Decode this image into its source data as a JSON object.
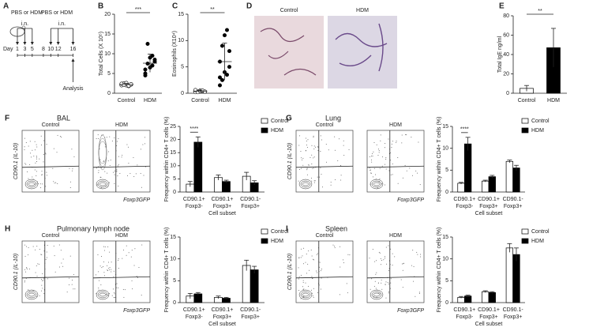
{
  "schedule": {
    "panel": "A",
    "treatments": [
      "PBS or HDM",
      "PBS or HDM"
    ],
    "routes": [
      "i.n.",
      "i.n."
    ],
    "day_label": "Day",
    "days": [
      1,
      3,
      5,
      8,
      10,
      12,
      16
    ],
    "end_label": "Analysis"
  },
  "micrographs": {
    "panel": "D",
    "labels": [
      "Control",
      "HDM"
    ]
  },
  "flow_panels": [
    {
      "plots": [
        "Control",
        "HDM"
      ],
      "y_label": "CD90.1 (IL-10)",
      "x_label": "Foxp3GFP"
    },
    {
      "plots": [
        "Control",
        "HDM"
      ],
      "y_label": "CD90.1 (IL-10)",
      "x_label": "Foxp3GFP"
    },
    {
      "plots": [
        "Control",
        "HDM"
      ],
      "y_label": "CD90.1 (IL-10)",
      "x_label": "Foxp3GFP"
    },
    {
      "plots": [
        "Control",
        "HDM"
      ],
      "y_label": "CD90.1 (IL-10)",
      "x_label": "Foxp3GFP"
    }
  ],
  "chart_data": [
    {
      "type": "dot",
      "panel": "B",
      "y_label": "Total Cells (X 10⁵)",
      "categories": [
        "Control",
        "HDM"
      ],
      "points": [
        [
          2,
          2.5,
          2,
          1.8,
          2.2,
          2.4,
          2.1,
          2.6,
          1.9,
          2.3
        ],
        [
          4.5,
          12.5,
          9,
          7,
          8,
          6,
          7.5,
          6.5,
          9.5,
          8.5,
          5
        ]
      ],
      "mean": [
        2.2,
        7.6
      ],
      "sd": [
        0.3,
        2.3
      ],
      "significance": "***",
      "ylim": [
        0,
        20
      ],
      "yticks": [
        0,
        5,
        10,
        15,
        20
      ]
    },
    {
      "type": "dot",
      "panel": "C",
      "y_label": "Eosinophils (X10⁴)",
      "categories": [
        "Control",
        "HDM"
      ],
      "points": [
        [
          0.2,
          0.3,
          0.5,
          0.4,
          0.3,
          0.6,
          0.2,
          0.4,
          0.5,
          0.3
        ],
        [
          1.5,
          2.5,
          4,
          3.5,
          5,
          6,
          9,
          11,
          12,
          8,
          3
        ]
      ],
      "mean": [
        0.4,
        6
      ],
      "sd": [
        0.15,
        3.5
      ],
      "significance": "**",
      "ylim": [
        0,
        15
      ],
      "yticks": [
        0,
        5,
        10,
        15
      ]
    },
    {
      "type": "bar",
      "panel": "E",
      "y_label": "Total IgE ng/ml",
      "categories": [
        "Control",
        "HDM"
      ],
      "values": [
        5,
        47
      ],
      "errors": [
        3,
        20
      ],
      "colors": [
        "#ffffff",
        "#000000"
      ],
      "significance": "**",
      "ylim": [
        0,
        80
      ],
      "yticks": [
        0,
        20,
        40,
        60,
        80
      ]
    },
    {
      "type": "grouped_bar",
      "panel": "F",
      "title": "BAL",
      "y_label": "Frequency within CD4+ T cells (%)",
      "x_label": "Cell subset",
      "categories": [
        [
          "CD90.1+",
          "Foxp3-"
        ],
        [
          "CD90.1+",
          "Foxp3+"
        ],
        [
          "CD90.1-",
          "Foxp3+"
        ]
      ],
      "series": [
        {
          "name": "Control",
          "color": "#ffffff",
          "values": [
            3,
            5.5,
            6
          ],
          "errors": [
            1,
            1,
            1.5
          ]
        },
        {
          "name": "HDM",
          "color": "#000000",
          "values": [
            19,
            4,
            3.5
          ],
          "errors": [
            2,
            0.5,
            0.8
          ]
        }
      ],
      "significance": "****",
      "ylim": [
        0,
        25
      ],
      "yticks": [
        0,
        5,
        10,
        15,
        20,
        25
      ]
    },
    {
      "type": "grouped_bar",
      "panel": "G",
      "title": "Lung",
      "y_label": "Frequency within CD4+ T cells (%)",
      "x_label": "Cell subset",
      "categories": [
        [
          "CD90.1+",
          "Foxp3-"
        ],
        [
          "CD90.1+",
          "Foxp3+"
        ],
        [
          "CD90.1-",
          "Foxp3+"
        ]
      ],
      "series": [
        {
          "name": "Control",
          "color": "#ffffff",
          "values": [
            2,
            2.5,
            7
          ],
          "errors": [
            0.2,
            0.2,
            0.3
          ]
        },
        {
          "name": "HDM",
          "color": "#000000",
          "values": [
            11,
            3.5,
            5.5
          ],
          "errors": [
            1.5,
            0.3,
            0.6
          ]
        }
      ],
      "significance": "****",
      "ylim": [
        0,
        15
      ],
      "yticks": [
        0,
        5,
        10,
        15
      ]
    },
    {
      "type": "grouped_bar",
      "panel": "H",
      "title": "Pulmonary lymph node",
      "y_label": "Frequency within CD4+ T cells (%)",
      "x_label": "Cell subset",
      "categories": [
        [
          "CD90.1+",
          "Foxp3-"
        ],
        [
          "CD90.1+",
          "Foxp3+"
        ],
        [
          "CD90.1-",
          "Foxp3+"
        ]
      ],
      "series": [
        {
          "name": "Control",
          "color": "#ffffff",
          "values": [
            1.5,
            1.2,
            8.5
          ],
          "errors": [
            0.6,
            0.3,
            1.2
          ]
        },
        {
          "name": "HDM",
          "color": "#000000",
          "values": [
            2,
            1,
            7.5
          ],
          "errors": [
            0.3,
            0.2,
            0.8
          ]
        }
      ],
      "ylim": [
        0,
        15
      ],
      "yticks": [
        0,
        5,
        10,
        15
      ]
    },
    {
      "type": "grouped_bar",
      "panel": "I",
      "title": "Spleen",
      "y_label": "Frequency within CD4+ T cells (%)",
      "x_label": "Cell subset",
      "categories": [
        [
          "CD90.1+",
          "Foxp3-"
        ],
        [
          "CD90.1+",
          "Foxp3+"
        ],
        [
          "CD90.1-",
          "Foxp3+"
        ]
      ],
      "series": [
        {
          "name": "Control",
          "color": "#ffffff",
          "values": [
            1.2,
            2.5,
            12.5
          ],
          "errors": [
            0.2,
            0.2,
            1
          ]
        },
        {
          "name": "HDM",
          "color": "#000000",
          "values": [
            1.5,
            2.3,
            11
          ],
          "errors": [
            0.2,
            0.2,
            1.5
          ]
        }
      ],
      "ylim": [
        0,
        15
      ],
      "yticks": [
        0,
        5,
        10,
        15
      ]
    }
  ]
}
